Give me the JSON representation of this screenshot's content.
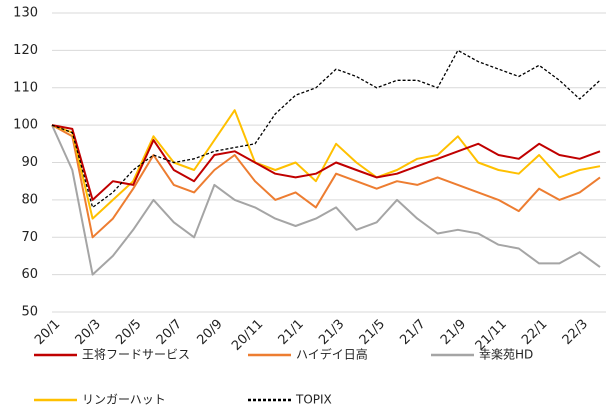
{
  "chart_data": {
    "type": "line",
    "categories": [
      "20/1",
      null,
      "20/3",
      null,
      "20/5",
      null,
      "20/7",
      null,
      "20/9",
      null,
      "20/11",
      null,
      "21/1",
      null,
      "21/3",
      null,
      "21/5",
      null,
      "21/7",
      null,
      "21/9",
      null,
      "21/11",
      null,
      "22/1",
      null,
      "22/3",
      null
    ],
    "ylim": [
      50,
      130
    ],
    "yticks": [
      50,
      60,
      70,
      80,
      90,
      100,
      110,
      120,
      130
    ],
    "grid": true,
    "series": [
      {
        "name": "王将フードサービス",
        "color": "#c00000",
        "values": [
          100,
          99,
          80,
          85,
          84,
          96,
          88,
          85,
          92,
          93,
          90,
          87,
          86,
          87,
          90,
          88,
          86,
          87,
          89,
          91,
          93,
          95,
          92,
          91,
          95,
          92,
          91,
          93
        ]
      },
      {
        "name": "ハイデイ日高",
        "color": "#ed7d31",
        "values": [
          100,
          97,
          70,
          75,
          83,
          92,
          84,
          82,
          88,
          92,
          85,
          80,
          82,
          78,
          87,
          85,
          83,
          85,
          84,
          86,
          84,
          82,
          80,
          77,
          83,
          80,
          82,
          86
        ]
      },
      {
        "name": "幸楽苑HD",
        "color": "#a5a5a5",
        "values": [
          100,
          88,
          60,
          65,
          72,
          80,
          74,
          70,
          84,
          80,
          78,
          75,
          73,
          75,
          78,
          72,
          74,
          80,
          75,
          71,
          72,
          71,
          68,
          67,
          63,
          63,
          66,
          62
        ]
      },
      {
        "name": "リンガーハット",
        "color": "#ffc000",
        "values": [
          100,
          98,
          75,
          80,
          85,
          97,
          90,
          88,
          96,
          104,
          90,
          88,
          90,
          85,
          95,
          90,
          86,
          88,
          91,
          92,
          97,
          90,
          88,
          87,
          92,
          86,
          88,
          89
        ]
      },
      {
        "name": "TOPIX",
        "color": "#000000",
        "dashed": true,
        "values": [
          100,
          98,
          78,
          82,
          88,
          92,
          90,
          91,
          93,
          94,
          95,
          103,
          108,
          110,
          115,
          113,
          110,
          112,
          112,
          110,
          120,
          117,
          115,
          113,
          116,
          112,
          107,
          112
        ]
      }
    ]
  }
}
